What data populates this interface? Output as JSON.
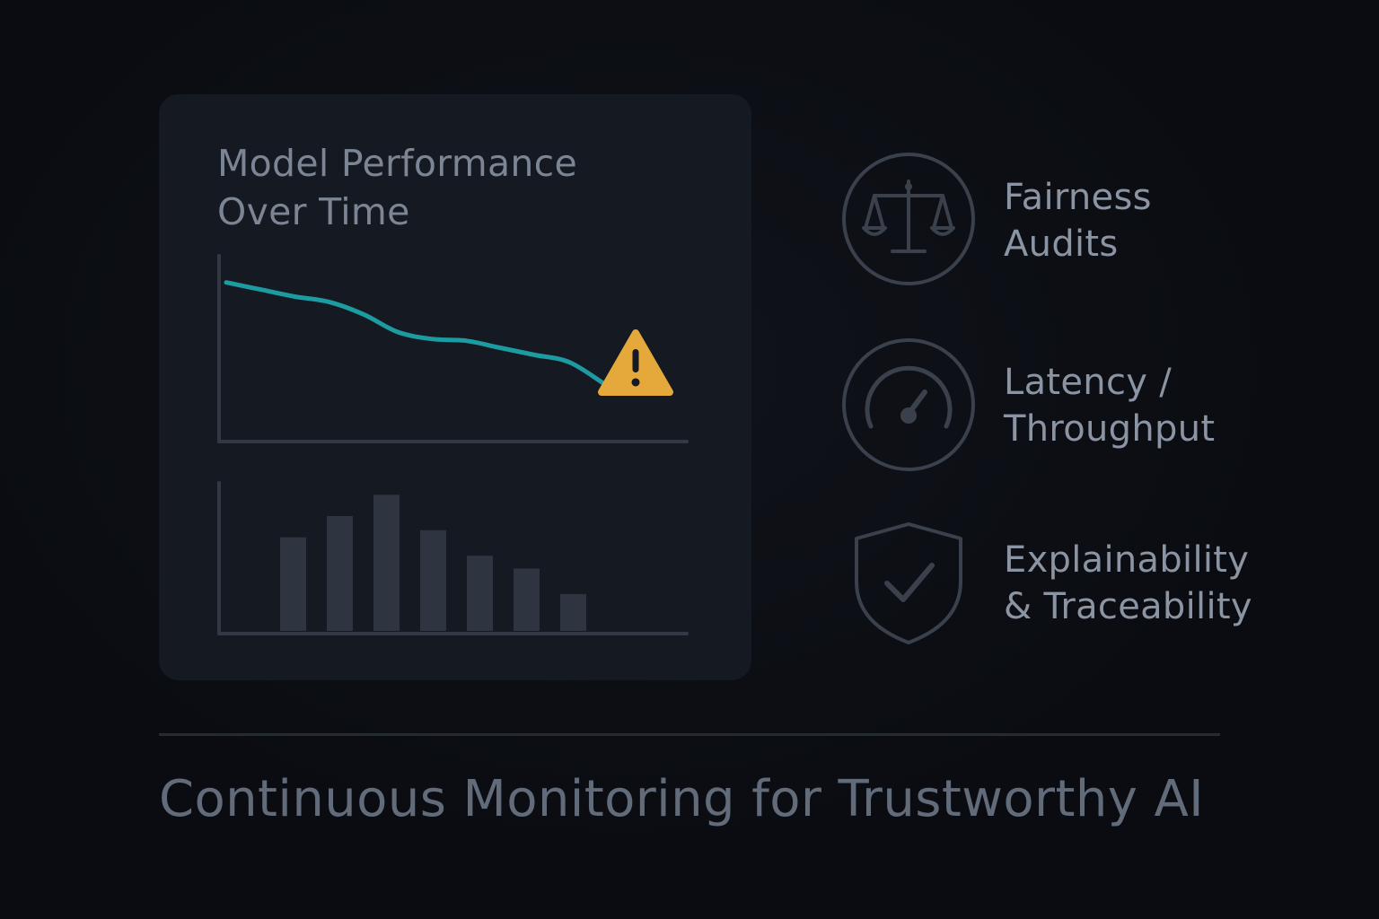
{
  "card": {
    "title_line1": "Model Performance",
    "title_line2": "Over Time"
  },
  "chart_data": [
    {
      "type": "line",
      "title": "Model Performance Over Time",
      "series": [
        {
          "values": [
            90,
            86,
            82,
            79,
            72,
            62,
            58,
            57,
            53,
            49,
            45,
            33
          ]
        }
      ],
      "ylim": [
        0,
        100
      ],
      "annotations": [
        {
          "type": "warning",
          "at_index": 11,
          "glyph": "!"
        }
      ],
      "colors": {
        "line": "#1c9ba0",
        "warning": "#e4a83b",
        "axis": "#323844"
      }
    },
    {
      "type": "bar",
      "values": [
        66,
        81,
        96,
        71,
        53,
        44,
        26
      ],
      "ylim": [
        0,
        100
      ],
      "colors": {
        "bar": "#2f3540",
        "axis": "#323844"
      }
    }
  ],
  "features": [
    {
      "icon": "scales-icon",
      "line1": "Fairness",
      "line2": "Audits"
    },
    {
      "icon": "gauge-icon",
      "line1": "Latency /",
      "line2": "Throughput"
    },
    {
      "icon": "shield-check-icon",
      "line1": "Explainability",
      "line2": "& Traceability"
    }
  ],
  "footer": {
    "title": "Continuous Monitoring for Trustworthy AI"
  },
  "colors": {
    "background": "#0a0c11",
    "card": "#151922",
    "icon_stroke": "#3a414c",
    "text": "#8b94a3"
  }
}
